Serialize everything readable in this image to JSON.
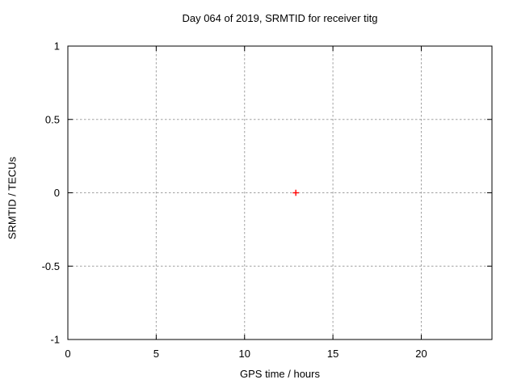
{
  "chart_data": {
    "type": "scatter",
    "title": "Day 064 of 2019, SRMTID for receiver titg",
    "xlabel": "GPS time / hours",
    "ylabel": "SRMTID / TECUs",
    "xlim": [
      0,
      24
    ],
    "ylim": [
      -1,
      1
    ],
    "grid": true,
    "legend": "none",
    "xticks": [
      {
        "v": 0,
        "label": "0"
      },
      {
        "v": 5,
        "label": "5"
      },
      {
        "v": 10,
        "label": "10"
      },
      {
        "v": 15,
        "label": "15"
      },
      {
        "v": 20,
        "label": "20"
      }
    ],
    "yticks": [
      {
        "v": 1,
        "label": "1"
      },
      {
        "v": 0.5,
        "label": "0.5"
      },
      {
        "v": 0,
        "label": "0"
      },
      {
        "v": -0.5,
        "label": "-0.5"
      },
      {
        "v": -1,
        "label": "-1"
      }
    ],
    "series": [
      {
        "name": "SRMTID",
        "marker": "plus",
        "color": "#ff0000",
        "points": [
          {
            "x": 12.9,
            "y": 0
          }
        ]
      }
    ],
    "colors": {
      "background": "#ffffff",
      "border": "#000000",
      "grid": "#a0a0a0",
      "text": "#000000"
    }
  }
}
